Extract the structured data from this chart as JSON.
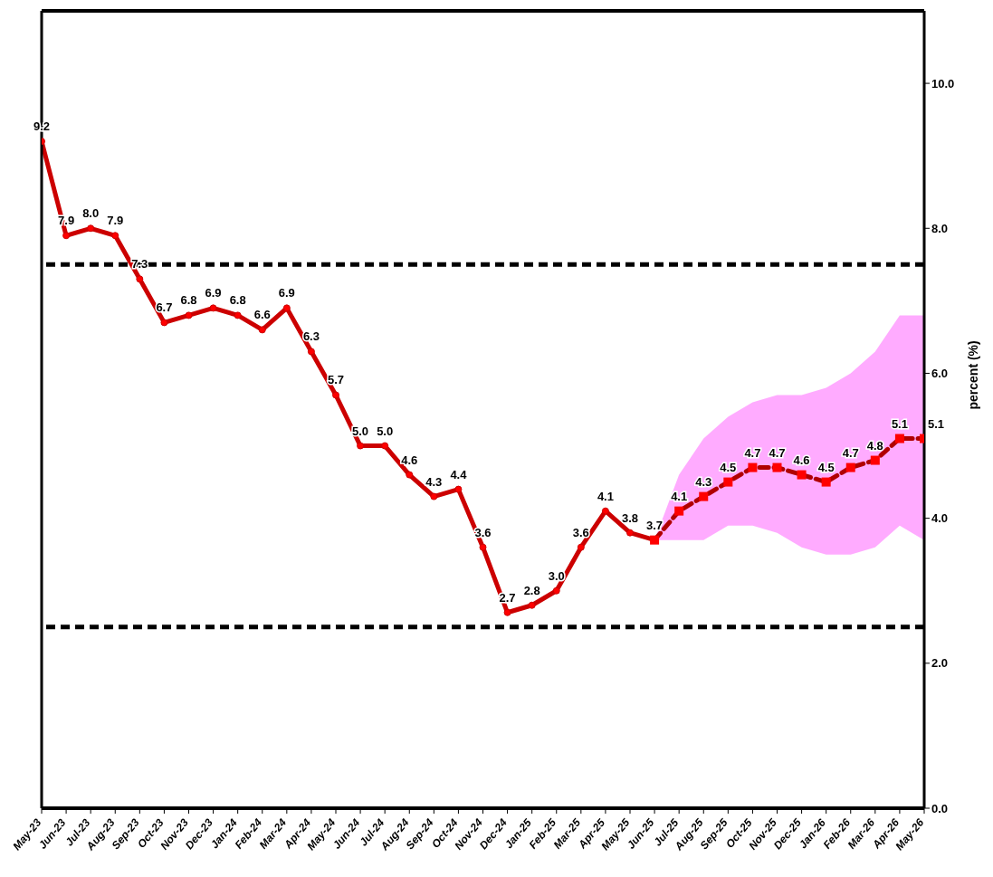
{
  "chart_data": {
    "type": "line",
    "ylabel": "percent (%)",
    "categories": [
      "May-23",
      "Jun-23",
      "Jul-23",
      "Aug-23",
      "Sep-23",
      "Oct-23",
      "Nov-23",
      "Dec-23",
      "Jan-24",
      "Feb-24",
      "Mar-24",
      "Apr-24",
      "May-24",
      "Jun-24",
      "Jul-24",
      "Aug-24",
      "Sep-24",
      "Oct-24",
      "Nov-24",
      "Dec-24",
      "Jan-25",
      "Feb-25",
      "Mar-25",
      "Apr-25",
      "May-25",
      "Jun-25",
      "Jul-25",
      "Aug-25",
      "Sep-25",
      "Oct-25",
      "Nov-25",
      "Dec-25",
      "Jan-26",
      "Feb-26",
      "Mar-26",
      "Apr-26",
      "May-26"
    ],
    "series": [
      {
        "color": "#cc0000",
        "marker": "circle",
        "line_style": "solid",
        "values": [
          9.2,
          7.9,
          8.0,
          7.9,
          7.3,
          6.7,
          6.8,
          6.9,
          6.8,
          6.6,
          6.9,
          6.3,
          5.7,
          5.0,
          5.0,
          4.6,
          4.3,
          4.4,
          3.6,
          2.7,
          2.8,
          3.0,
          3.6,
          4.1,
          3.8,
          3.7,
          null,
          null,
          null,
          null,
          null,
          null,
          null,
          null,
          null,
          null,
          null
        ],
        "value_labels": [
          "9.2",
          "7.9",
          "8.0",
          "7.9",
          "7.3",
          "6.7",
          "6.8",
          "6.9",
          "6.8",
          "6.6",
          "6.9",
          "6.3",
          "5.7",
          "5.0",
          "5.0",
          "4.6",
          "4.3",
          "4.4",
          "3.6",
          "2.7",
          "2.8",
          "3.0",
          "3.6",
          "4.1",
          "3.8",
          "3.7",
          null,
          null,
          null,
          null,
          null,
          null,
          null,
          null,
          null,
          null,
          null
        ]
      },
      {
        "color": "#b00000",
        "marker": "square",
        "line_style": "dashed",
        "values": [
          null,
          null,
          null,
          null,
          null,
          null,
          null,
          null,
          null,
          null,
          null,
          null,
          null,
          null,
          null,
          null,
          null,
          null,
          null,
          null,
          null,
          null,
          null,
          null,
          null,
          3.7,
          4.1,
          4.3,
          4.5,
          4.7,
          4.7,
          4.6,
          4.5,
          4.7,
          4.8,
          5.1,
          5.1
        ],
        "value_labels": [
          null,
          null,
          null,
          null,
          null,
          null,
          null,
          null,
          null,
          null,
          null,
          null,
          null,
          null,
          null,
          null,
          null,
          null,
          null,
          null,
          null,
          null,
          null,
          null,
          null,
          null,
          "4.1",
          "4.3",
          "4.5",
          "4.7",
          "4.7",
          "4.6",
          "4.5",
          "4.7",
          "4.8",
          "5.1",
          "5.1"
        ],
        "lower": [
          null,
          null,
          null,
          null,
          null,
          null,
          null,
          null,
          null,
          null,
          null,
          null,
          null,
          null,
          null,
          null,
          null,
          null,
          null,
          null,
          null,
          null,
          null,
          null,
          null,
          3.7,
          3.7,
          3.7,
          3.9,
          3.9,
          3.8,
          3.6,
          3.5,
          3.5,
          3.6,
          3.9,
          3.7
        ],
        "upper": [
          null,
          null,
          null,
          null,
          null,
          null,
          null,
          null,
          null,
          null,
          null,
          null,
          null,
          null,
          null,
          null,
          null,
          null,
          null,
          null,
          null,
          null,
          null,
          null,
          null,
          3.7,
          4.6,
          5.1,
          5.4,
          5.6,
          5.7,
          5.7,
          5.8,
          6.0,
          6.3,
          6.8,
          6.8
        ]
      }
    ],
    "ylim": [
      0,
      11
    ],
    "yticks": [
      {
        "value": 0,
        "label": "0.0"
      },
      {
        "value": 2,
        "label": "2.0"
      },
      {
        "value": 4,
        "label": "4.0"
      },
      {
        "value": 6,
        "label": "6.0"
      },
      {
        "value": 8,
        "label": "8.0"
      },
      {
        "value": 10,
        "label": "10.0"
      }
    ],
    "ref_lines": [
      {
        "axis": "y",
        "value": 7.5,
        "color": "#000000",
        "line_style": "dashed"
      },
      {
        "axis": "y",
        "value": 2.5,
        "color": "#000000",
        "line_style": "dashed"
      }
    ],
    "grid": false
  }
}
